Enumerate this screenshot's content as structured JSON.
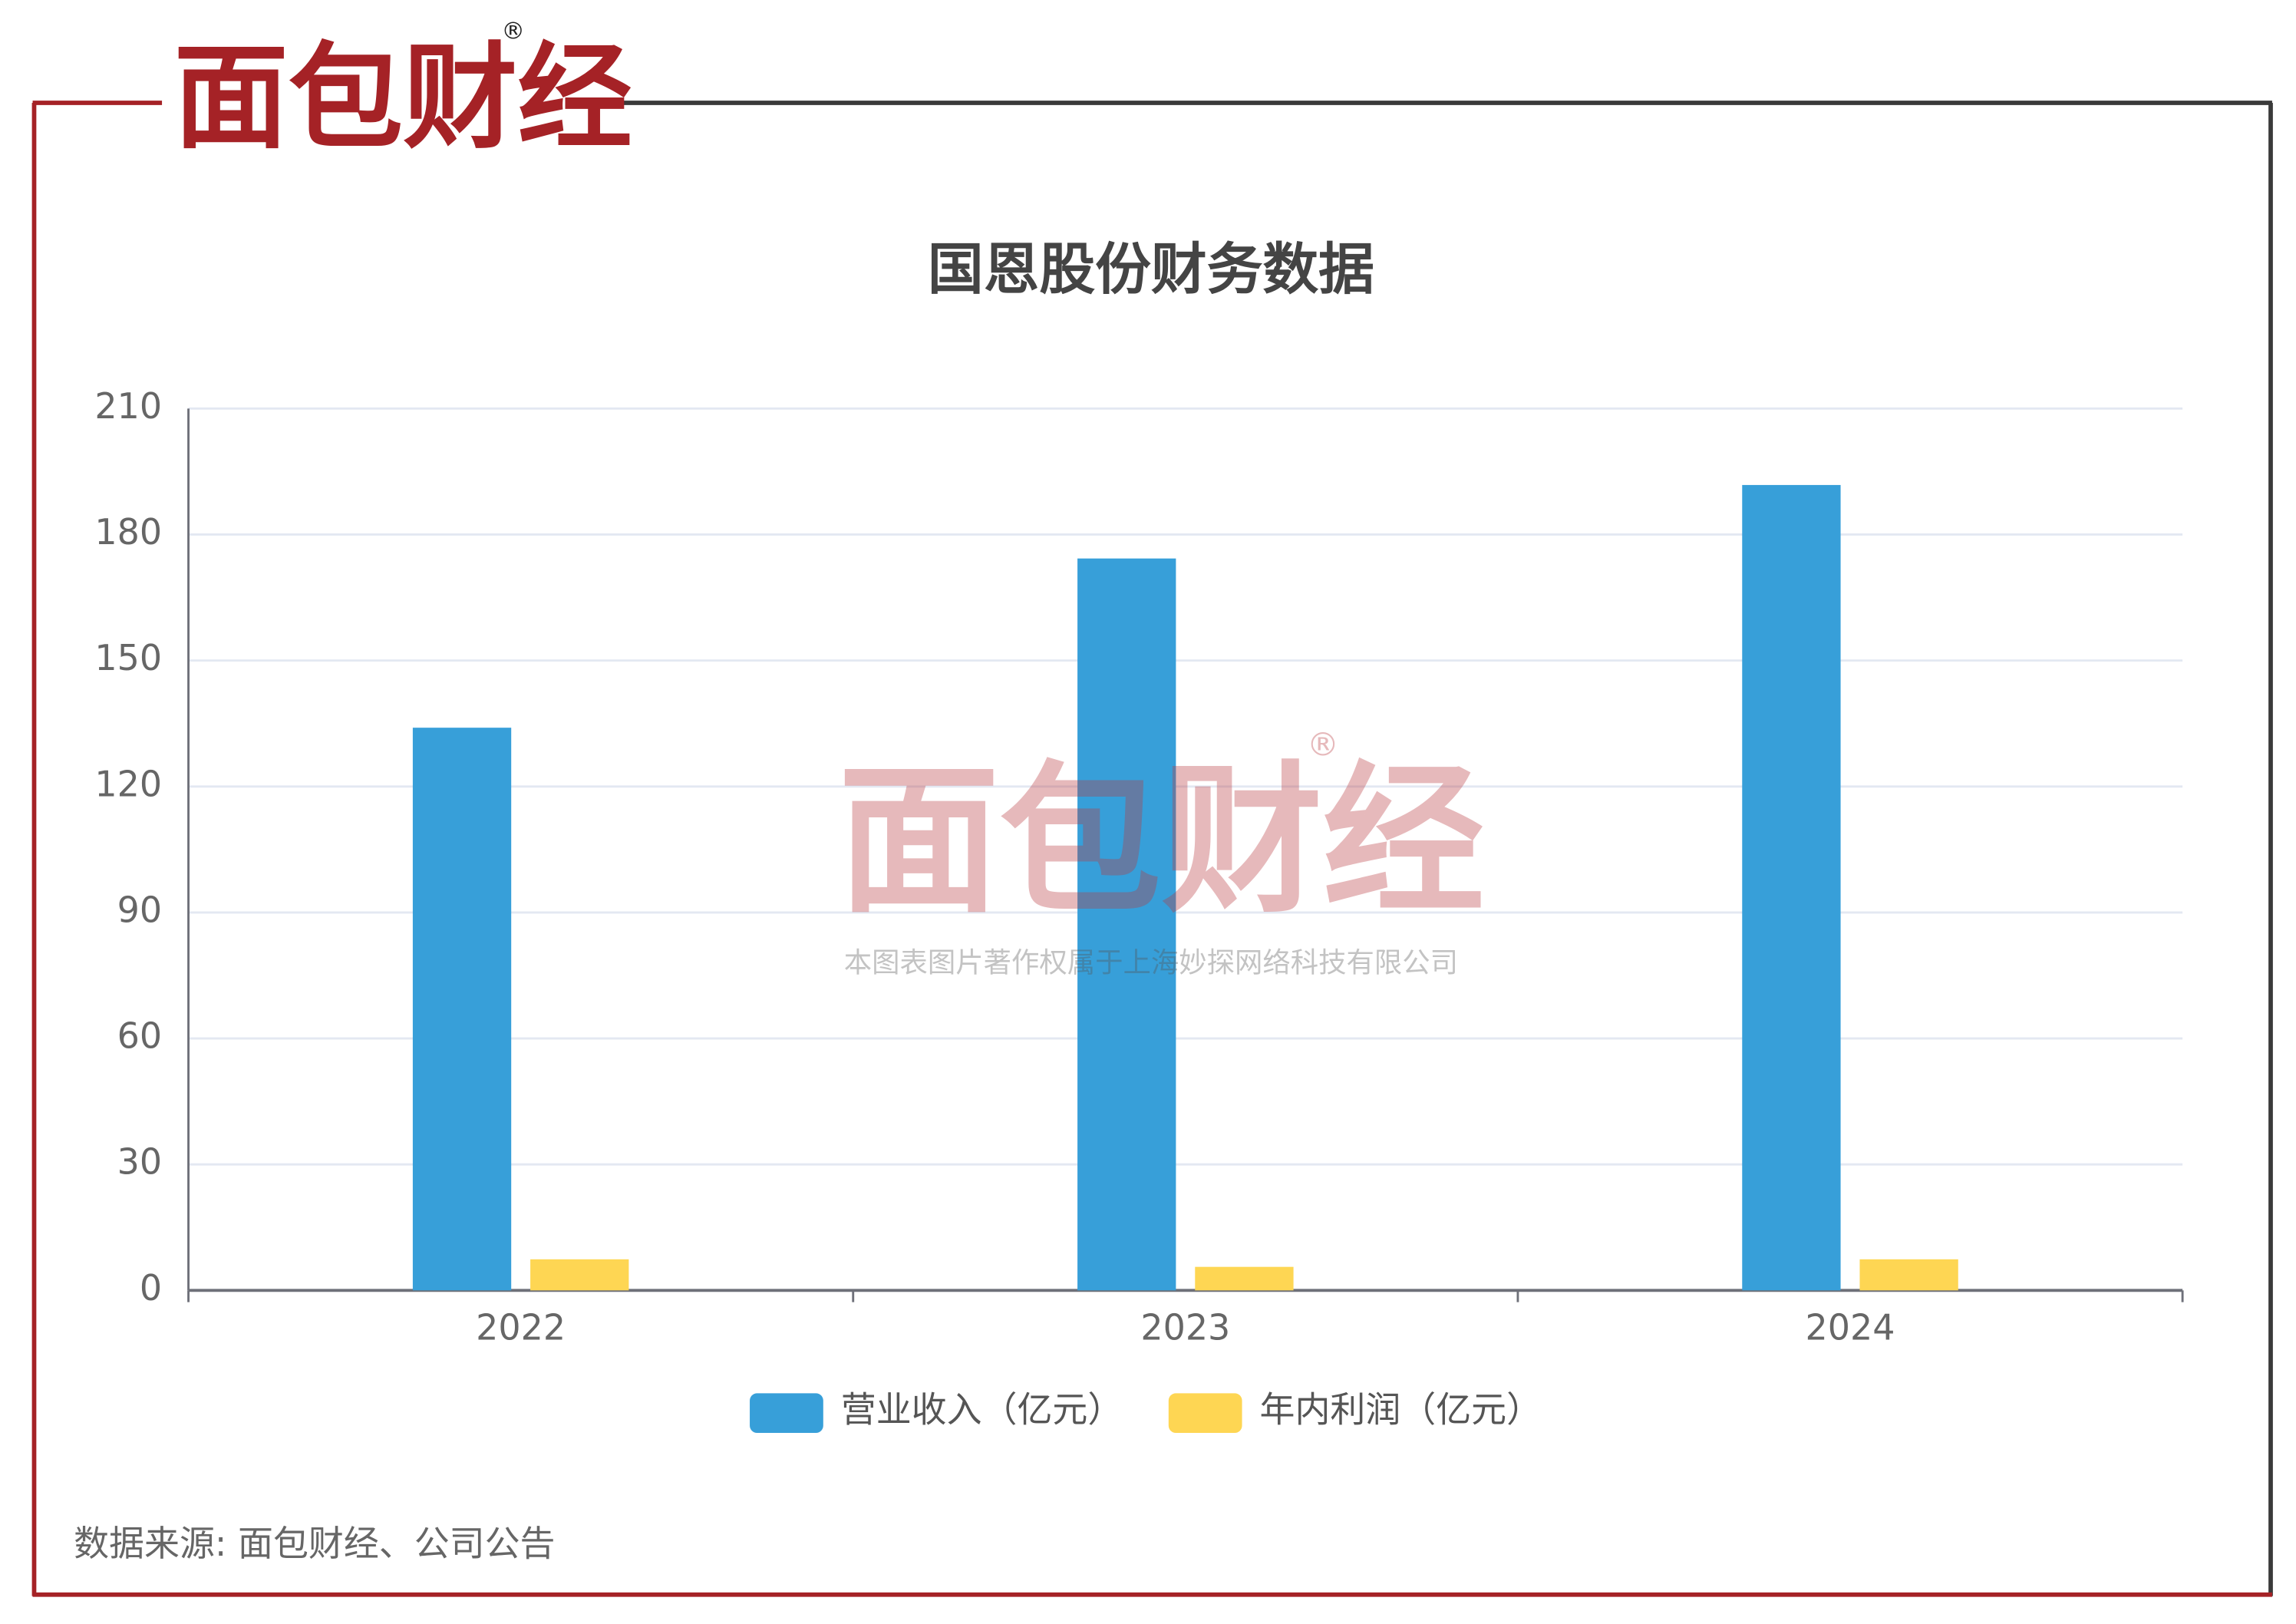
{
  "brand": {
    "logo": "面包财经",
    "registered": "®",
    "watermark_notice": "本图表图片著作权属于上海妙探网络科技有限公司"
  },
  "chart_data": {
    "type": "bar",
    "title": "国恩股份财务数据",
    "categories": [
      "2022",
      "2023",
      "2024"
    ],
    "series": [
      {
        "name": "营业收入（亿元）",
        "color": "#379fd9",
        "values": [
          134.0,
          174.3,
          191.8
        ]
      },
      {
        "name": "年内利润（亿元）",
        "color": "#fed653",
        "values": [
          7.4,
          5.6,
          7.4
        ]
      }
    ],
    "ylim": [
      0,
      210
    ],
    "yticks": [
      0,
      30,
      60,
      90,
      120,
      150,
      180,
      210
    ],
    "grid": true,
    "legend": "bottom"
  },
  "footer": {
    "source": "数据来源: 面包财经、公司公告"
  }
}
